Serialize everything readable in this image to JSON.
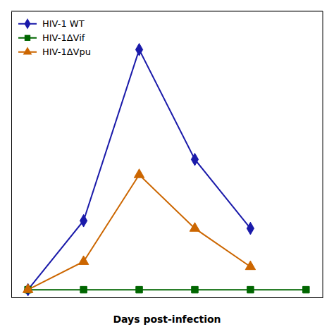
{
  "chart_data": {
    "type": "line",
    "xlabel": "Days post-infection",
    "x": [
      0,
      1,
      2,
      3,
      4,
      5
    ],
    "series": [
      {
        "name": "HIV-1 WT",
        "color": "#1a1aaa",
        "marker": "diamond",
        "values": [
          0.01,
          0.28,
          0.95,
          0.52,
          0.25,
          null
        ]
      },
      {
        "name": "HIV-1ΔVif",
        "color": "#006600",
        "marker": "square",
        "values": [
          0.01,
          0.01,
          0.01,
          0.01,
          0.01,
          0.01
        ]
      },
      {
        "name": "HIV-1ΔVpu",
        "color": "#cc6600",
        "marker": "triangle",
        "values": [
          0.01,
          0.12,
          0.46,
          0.25,
          0.1,
          null
        ]
      }
    ],
    "xlim": [
      -0.3,
      5.3
    ],
    "ylim": [
      -0.02,
      1.1
    ],
    "tick_labels": false,
    "grid": false,
    "legend": "upper left"
  }
}
